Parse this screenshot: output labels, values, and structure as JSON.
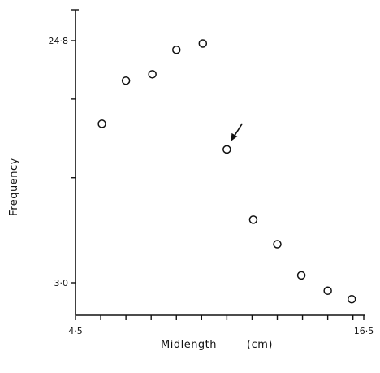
{
  "chart_data": {
    "type": "scatter",
    "title": "",
    "xlabel": "Midlength",
    "xunit": "(cm)",
    "ylabel": "Frequency",
    "y_scale": "log",
    "xlim": [
      4.5,
      16.5
    ],
    "ylim": [
      2.3,
      37
    ],
    "x_tick_labels": [
      {
        "value": 4.5,
        "label": "4·5"
      },
      {
        "value": 16.5,
        "label": "16·5"
      }
    ],
    "y_tick_labels": [
      {
        "value": 3.0,
        "label": "3·0"
      },
      {
        "value": 24.8,
        "label": "24·8"
      }
    ],
    "x_ticks": [
      4.5,
      5.55,
      6.6,
      7.65,
      8.7,
      9.75,
      10.8,
      11.85,
      12.9,
      13.95,
      15.0,
      16.05
    ],
    "y_ticks": [
      3.0,
      7.5,
      14.9,
      24.8
    ],
    "points": [
      {
        "x": 5.6,
        "y": 12.0
      },
      {
        "x": 6.6,
        "y": 17.5
      },
      {
        "x": 7.7,
        "y": 18.5
      },
      {
        "x": 8.7,
        "y": 22.9
      },
      {
        "x": 9.8,
        "y": 24.2
      },
      {
        "x": 10.8,
        "y": 9.6
      },
      {
        "x": 11.9,
        "y": 5.2
      },
      {
        "x": 12.9,
        "y": 4.2
      },
      {
        "x": 13.9,
        "y": 3.2
      },
      {
        "x": 15.0,
        "y": 2.8
      },
      {
        "x": 16.0,
        "y": 2.6
      }
    ],
    "annotation": {
      "type": "arrow",
      "points_to": {
        "x": 10.8,
        "y": 9.6
      }
    },
    "grid": false,
    "legend": "none",
    "colors": {
      "ink": "#111111",
      "background": "#ffffff"
    }
  }
}
